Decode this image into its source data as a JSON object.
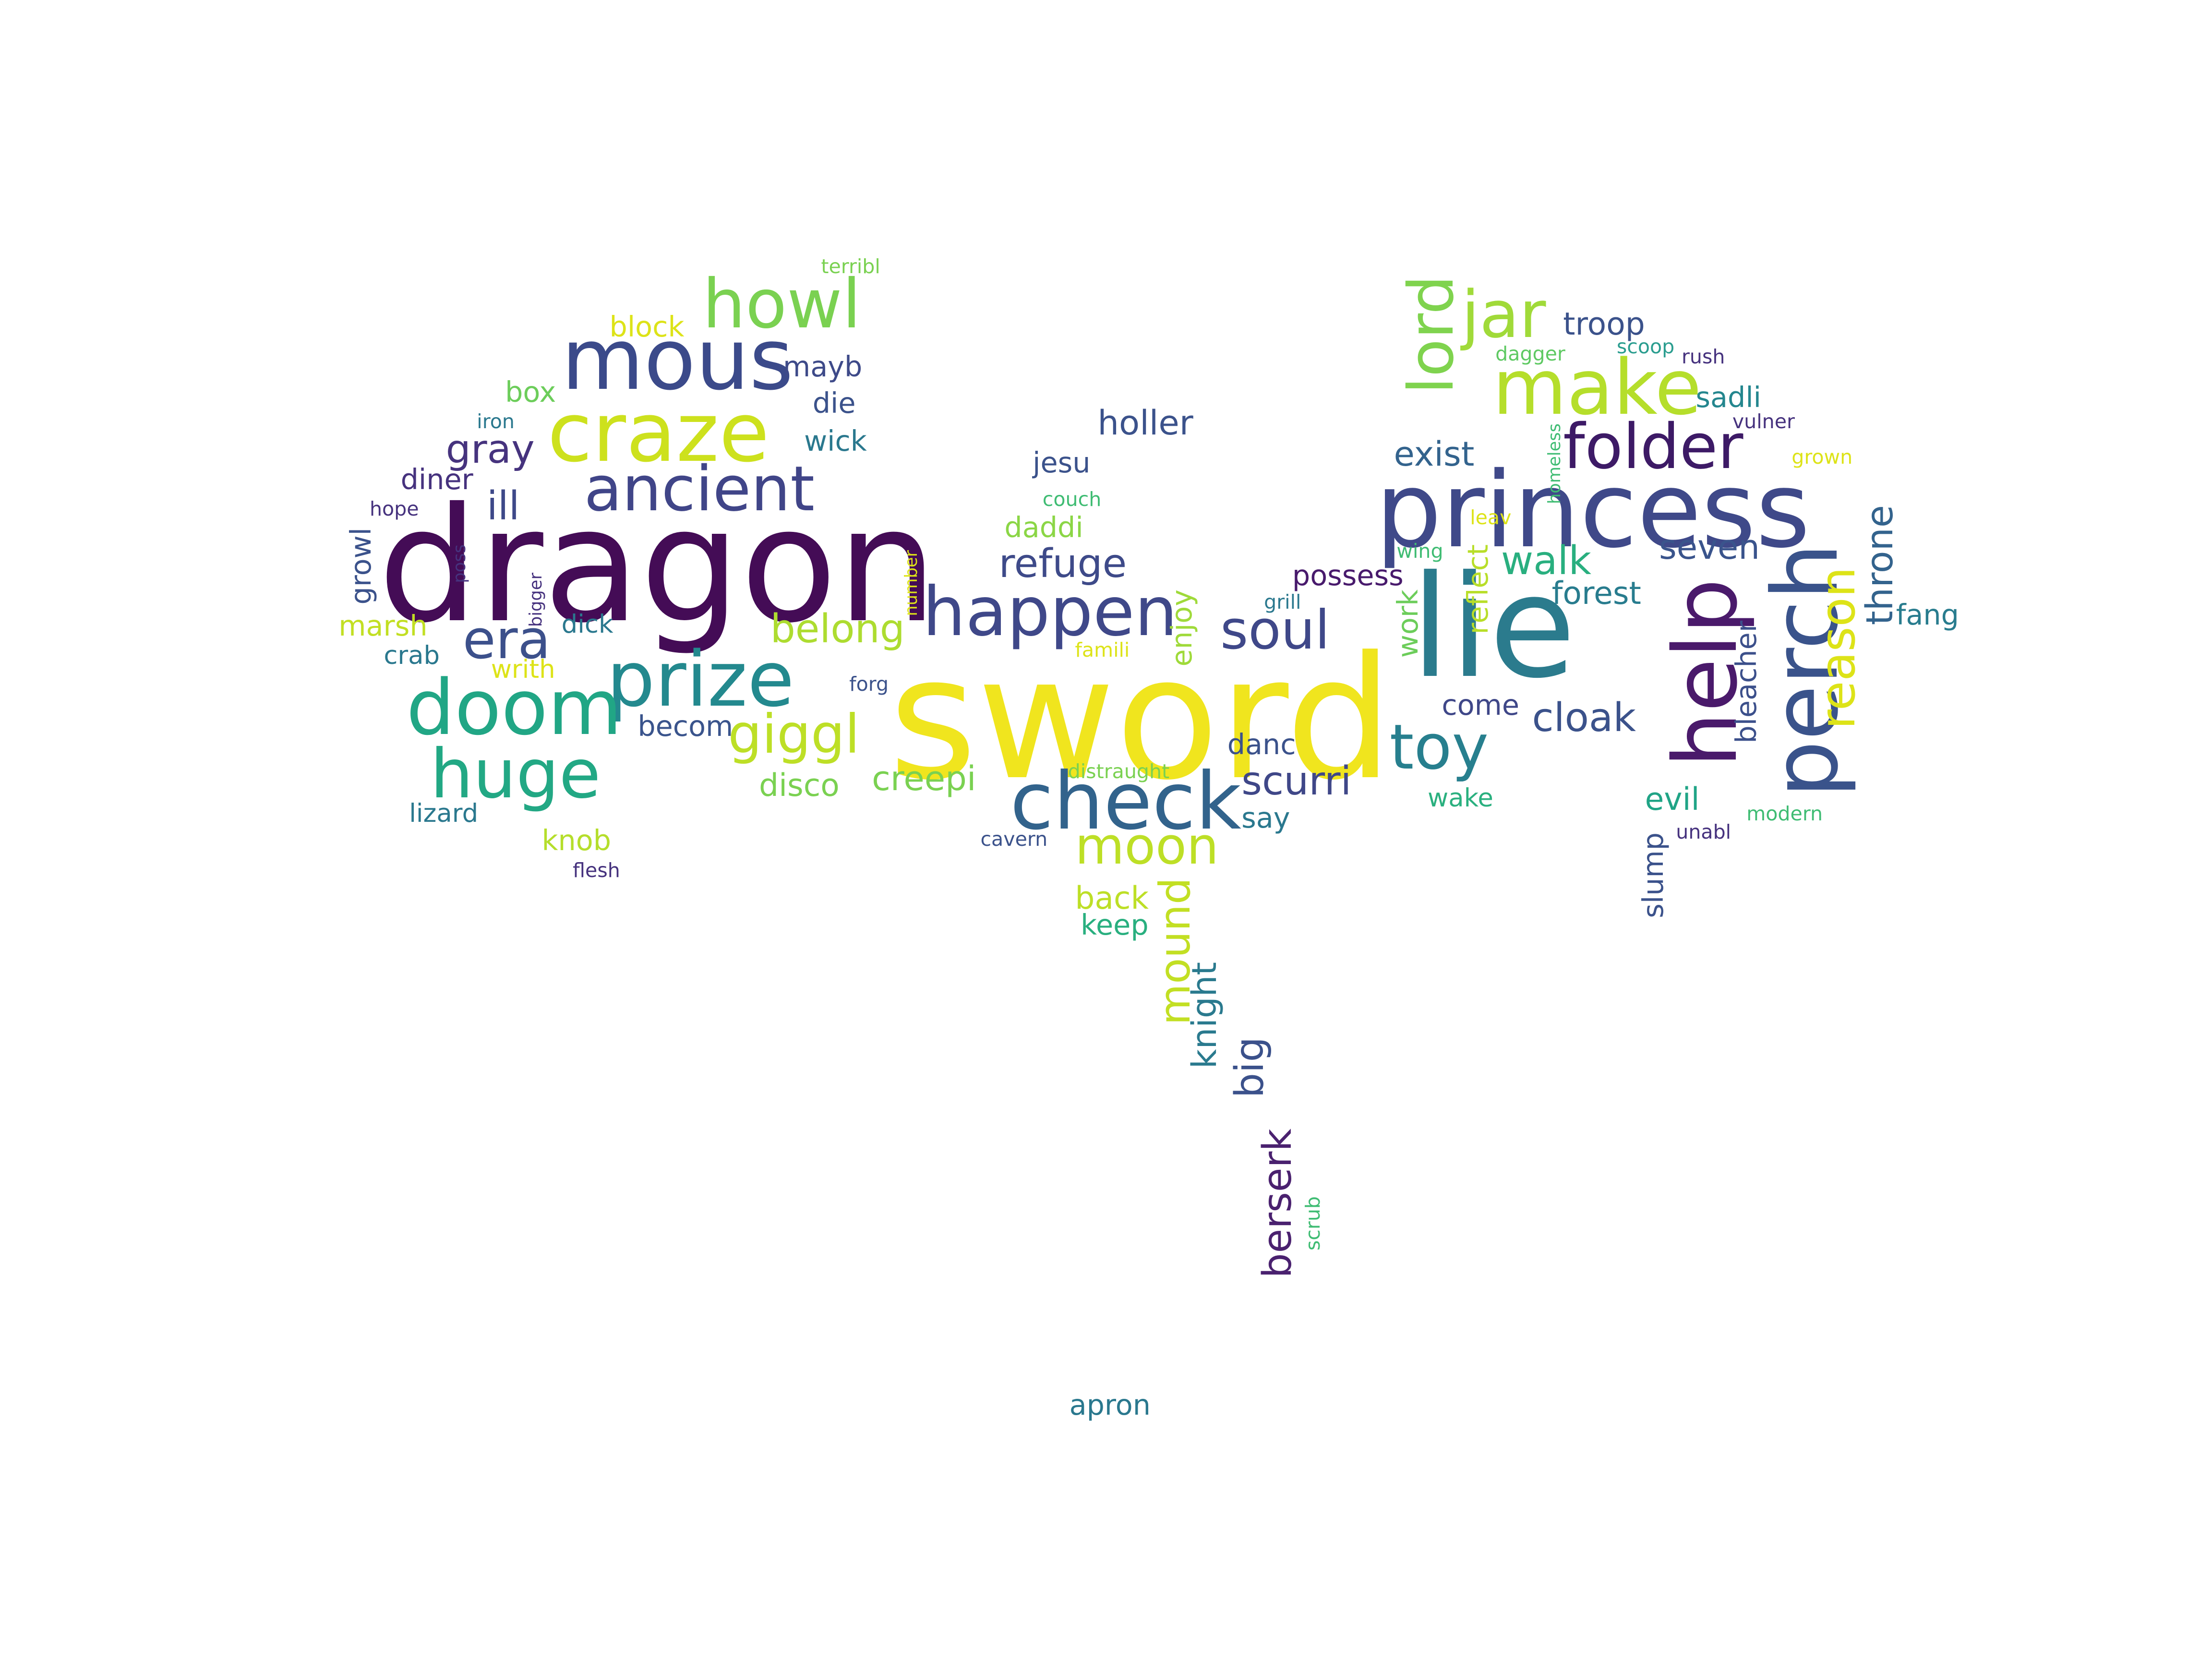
{
  "words": [
    {
      "text": "sword",
      "color": "#f0e51e"
    },
    {
      "text": "dragon",
      "color": "#440c56"
    },
    {
      "text": "lie",
      "color": "#2b7b8d"
    },
    {
      "text": "princess",
      "color": "#3f4989"
    },
    {
      "text": "check",
      "color": "#32638c"
    },
    {
      "text": "perch",
      "color": "#3a538b"
    },
    {
      "text": "help",
      "color": "#4a1a6b"
    },
    {
      "text": "mous",
      "color": "#3b4a8a"
    },
    {
      "text": "craze",
      "color": "#cde11d"
    },
    {
      "text": "make",
      "color": "#b5de2b"
    },
    {
      "text": "howl",
      "color": "#7ad151"
    },
    {
      "text": "happen",
      "color": "#3f4889"
    },
    {
      "text": "prize",
      "color": "#23898e"
    },
    {
      "text": "doom",
      "color": "#21a685"
    },
    {
      "text": "huge",
      "color": "#22a884"
    },
    {
      "text": "ancient",
      "color": "#404588"
    },
    {
      "text": "jar",
      "color": "#a0da39"
    },
    {
      "text": "lord",
      "color": "#7fd34e"
    },
    {
      "text": "folder",
      "color": "#3d1a66"
    },
    {
      "text": "reason",
      "color": "#dde318"
    },
    {
      "text": "toy",
      "color": "#277f8e"
    },
    {
      "text": "moon",
      "color": "#bddf26"
    },
    {
      "text": "soul",
      "color": "#3f4889"
    },
    {
      "text": "giggl",
      "color": "#bddf26"
    },
    {
      "text": "era",
      "color": "#3c508b"
    },
    {
      "text": "throne",
      "color": "#33638d"
    },
    {
      "text": "belong",
      "color": "#addc30"
    },
    {
      "text": "refuge",
      "color": "#3e4a89"
    },
    {
      "text": "holler",
      "color": "#3b528b"
    },
    {
      "text": "exist",
      "color": "#33638d"
    },
    {
      "text": "cloak",
      "color": "#3b528b"
    },
    {
      "text": "walk",
      "color": "#29af7f"
    },
    {
      "text": "seven",
      "color": "#3a548c"
    },
    {
      "text": "forest",
      "color": "#287c8e"
    },
    {
      "text": "fang",
      "color": "#287c8e"
    },
    {
      "text": "scurri",
      "color": "#3f4788"
    },
    {
      "text": "ill",
      "color": "#3e4989"
    },
    {
      "text": "gray",
      "color": "#46337e"
    },
    {
      "text": "mound",
      "color": "#c2df23"
    },
    {
      "text": "berserk",
      "color": "#4a216f"
    },
    {
      "text": "big",
      "color": "#3b518b"
    },
    {
      "text": "knight",
      "color": "#2a7a8e"
    },
    {
      "text": "creepi",
      "color": "#7ad151"
    },
    {
      "text": "disco",
      "color": "#7ad151"
    },
    {
      "text": "becom",
      "color": "#3a548c"
    },
    {
      "text": "enjoy",
      "color": "#9fda3a"
    },
    {
      "text": "daddi",
      "color": "#8bd646"
    },
    {
      "text": "jesu",
      "color": "#3b528b"
    },
    {
      "text": "possess",
      "color": "#481a6c"
    },
    {
      "text": "reflect",
      "color": "#b8de29"
    },
    {
      "text": "bleacher",
      "color": "#3c508b"
    },
    {
      "text": "work",
      "color": "#6ccd5a"
    },
    {
      "text": "come",
      "color": "#3f4788"
    },
    {
      "text": "wake",
      "color": "#2ab07f"
    },
    {
      "text": "evil",
      "color": "#20a486"
    },
    {
      "text": "slump",
      "color": "#3b528b"
    },
    {
      "text": "sadli",
      "color": "#24868e"
    },
    {
      "text": "troop",
      "color": "#3b528b"
    },
    {
      "text": "danc",
      "color": "#3b528b"
    },
    {
      "text": "say",
      "color": "#2a788e"
    },
    {
      "text": "back",
      "color": "#bddf26"
    },
    {
      "text": "keep",
      "color": "#29af7f"
    },
    {
      "text": "block",
      "color": "#dde318"
    },
    {
      "text": "box",
      "color": "#6ccd5a"
    },
    {
      "text": "mayb",
      "color": "#3e4a89"
    },
    {
      "text": "die",
      "color": "#3b528b"
    },
    {
      "text": "wick",
      "color": "#2a788e"
    },
    {
      "text": "diner",
      "color": "#46327e"
    },
    {
      "text": "growl",
      "color": "#3b528b"
    },
    {
      "text": "marsh",
      "color": "#c2df23"
    },
    {
      "text": "crab",
      "color": "#2a788e"
    },
    {
      "text": "dick",
      "color": "#2a788e"
    },
    {
      "text": "writh",
      "color": "#dde318"
    },
    {
      "text": "lizard",
      "color": "#2a788e"
    },
    {
      "text": "knob",
      "color": "#b5de2b"
    },
    {
      "text": "flesh",
      "color": "#46327e"
    },
    {
      "text": "iron",
      "color": "#2a788e"
    },
    {
      "text": "hope",
      "color": "#46327e"
    },
    {
      "text": "poss",
      "color": "#46327e"
    },
    {
      "text": "bigger",
      "color": "#46327e"
    },
    {
      "text": "number",
      "color": "#dde318"
    },
    {
      "text": "forg",
      "color": "#3b528b"
    },
    {
      "text": "famili",
      "color": "#dde318"
    },
    {
      "text": "distraught",
      "color": "#7ad151"
    },
    {
      "text": "cavern",
      "color": "#3b528b"
    },
    {
      "text": "couch",
      "color": "#3fbc73"
    },
    {
      "text": "grill",
      "color": "#2a788e"
    },
    {
      "text": "wing",
      "color": "#3fbc73"
    },
    {
      "text": "leav",
      "color": "#dde318"
    },
    {
      "text": "homeless",
      "color": "#3fbc73"
    },
    {
      "text": "grown",
      "color": "#dde318"
    },
    {
      "text": "vulner",
      "color": "#46327e"
    },
    {
      "text": "dagger",
      "color": "#5ec962"
    },
    {
      "text": "scoop",
      "color": "#2a9d8f"
    },
    {
      "text": "rush",
      "color": "#46327e"
    },
    {
      "text": "terribl",
      "color": "#7ad151"
    },
    {
      "text": "modern",
      "color": "#3fbc73"
    },
    {
      "text": "unabl",
      "color": "#46327e"
    },
    {
      "text": "scrub",
      "color": "#3fbc73"
    },
    {
      "text": "apron",
      "color": "#2a788e"
    }
  ]
}
